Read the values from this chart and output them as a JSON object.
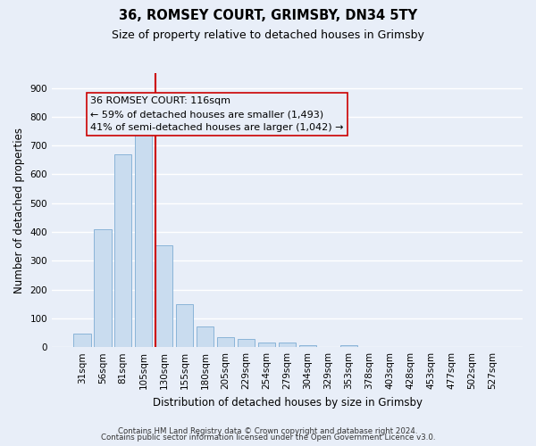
{
  "title1": "36, ROMSEY COURT, GRIMSBY, DN34 5TY",
  "title2": "Size of property relative to detached houses in Grimsby",
  "xlabel": "Distribution of detached houses by size in Grimsby",
  "ylabel": "Number of detached properties",
  "footer1": "Contains HM Land Registry data © Crown copyright and database right 2024.",
  "footer2": "Contains public sector information licensed under the Open Government Licence v3.0.",
  "annotation_line1": "36 ROMSEY COURT: 116sqm",
  "annotation_line2": "← 59% of detached houses are smaller (1,493)",
  "annotation_line3": "41% of semi-detached houses are larger (1,042) →",
  "bar_labels": [
    "31sqm",
    "56sqm",
    "81sqm",
    "105sqm",
    "130sqm",
    "155sqm",
    "180sqm",
    "205sqm",
    "229sqm",
    "254sqm",
    "279sqm",
    "304sqm",
    "329sqm",
    "353sqm",
    "378sqm",
    "403sqm",
    "428sqm",
    "453sqm",
    "477sqm",
    "502sqm",
    "527sqm"
  ],
  "bar_values": [
    47,
    410,
    670,
    750,
    355,
    148,
    72,
    35,
    28,
    17,
    17,
    8,
    0,
    8,
    0,
    0,
    0,
    0,
    0,
    0,
    0
  ],
  "bar_color": "#c9dcef",
  "bar_edge_color": "#8ab4d8",
  "vline_x": 3.58,
  "vline_color": "#cc0000",
  "ylim": [
    0,
    950
  ],
  "yticks": [
    0,
    100,
    200,
    300,
    400,
    500,
    600,
    700,
    800,
    900
  ],
  "bg_color": "#e8eef8",
  "plot_bg_color": "#e8eef8",
  "grid_color": "#ffffff",
  "title_fontsize": 10.5,
  "subtitle_fontsize": 9,
  "axis_label_fontsize": 8.5,
  "tick_fontsize": 7.5,
  "ann_fontsize": 8
}
